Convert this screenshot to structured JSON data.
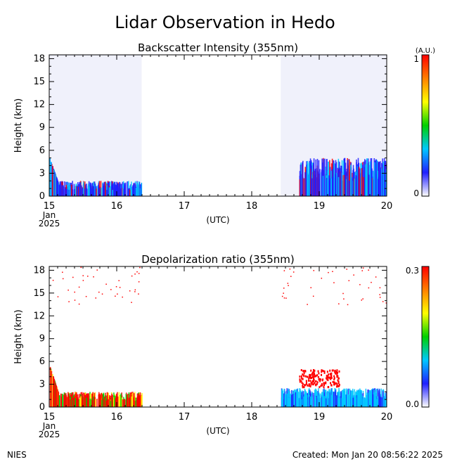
{
  "page": {
    "title": "Lidar Observation in Hedo",
    "footer_left": "NIES",
    "footer_right": "Created: Mon Jan 20 08:56:22 2025"
  },
  "colors": {
    "axis": "#000000",
    "scale": [
      "#ffffff",
      "#2020ff",
      "#00c8ff",
      "#00d000",
      "#ffff00",
      "#ff8000",
      "#ff0000"
    ]
  },
  "chart_data": [
    {
      "type": "heatmap",
      "title": "Backscatter Intensity (355nm)",
      "ylabel": "Height (km)",
      "xlabel": "(UTC)",
      "x_ticks": [
        "15",
        "16",
        "17",
        "18",
        "19",
        "20"
      ],
      "x_sub": [
        "Jan",
        "2025"
      ],
      "xlim": [
        15,
        20
      ],
      "y_ticks": [
        "0",
        "3",
        "6",
        "9",
        "12",
        "15",
        "18"
      ],
      "ylim": [
        0,
        18.5
      ],
      "colorbar": {
        "unit": "(A.U.)",
        "min_label": "0",
        "max_label": "1",
        "range": [
          0,
          1
        ]
      },
      "data_windows": [
        [
          15.0,
          16.37
        ],
        [
          18.43,
          20.0
        ]
      ],
      "features": [
        {
          "x": [
            15.0,
            15.15
          ],
          "ymax": 5.0,
          "kind": "low-layer"
        },
        {
          "x": [
            15.15,
            16.37
          ],
          "ymax": 2.0,
          "kind": "boundary-layer"
        },
        {
          "x": [
            18.7,
            20.0
          ],
          "ymax": 5.0,
          "kind": "aerosol-cloud"
        }
      ]
    },
    {
      "type": "heatmap",
      "title": "Depolarization ratio (355nm)",
      "ylabel": "Height (km)",
      "xlabel": "(UTC)",
      "x_ticks": [
        "15",
        "16",
        "17",
        "18",
        "19",
        "20"
      ],
      "x_sub": [
        "Jan",
        "2025"
      ],
      "xlim": [
        15,
        20
      ],
      "y_ticks": [
        "0",
        "3",
        "6",
        "9",
        "12",
        "15",
        "18"
      ],
      "ylim": [
        0,
        18.5
      ],
      "colorbar": {
        "unit": "",
        "min_label": "0.0",
        "max_label": "0.3",
        "range": [
          0,
          0.3
        ]
      },
      "data_windows": [
        [
          15.0,
          16.37
        ],
        [
          18.43,
          20.0
        ]
      ],
      "features": [
        {
          "x": [
            15.0,
            15.15
          ],
          "ymax": 5.5,
          "kind": "low-layer"
        },
        {
          "x": [
            15.15,
            16.37
          ],
          "ymax": 2.0,
          "kind": "boundary-layer"
        },
        {
          "x": [
            18.43,
            20.0
          ],
          "ymax": 2.5,
          "kind": "surface-layer"
        },
        {
          "x": [
            18.7,
            19.3
          ],
          "ymax": 5.0,
          "kind": "cloud"
        }
      ]
    }
  ]
}
